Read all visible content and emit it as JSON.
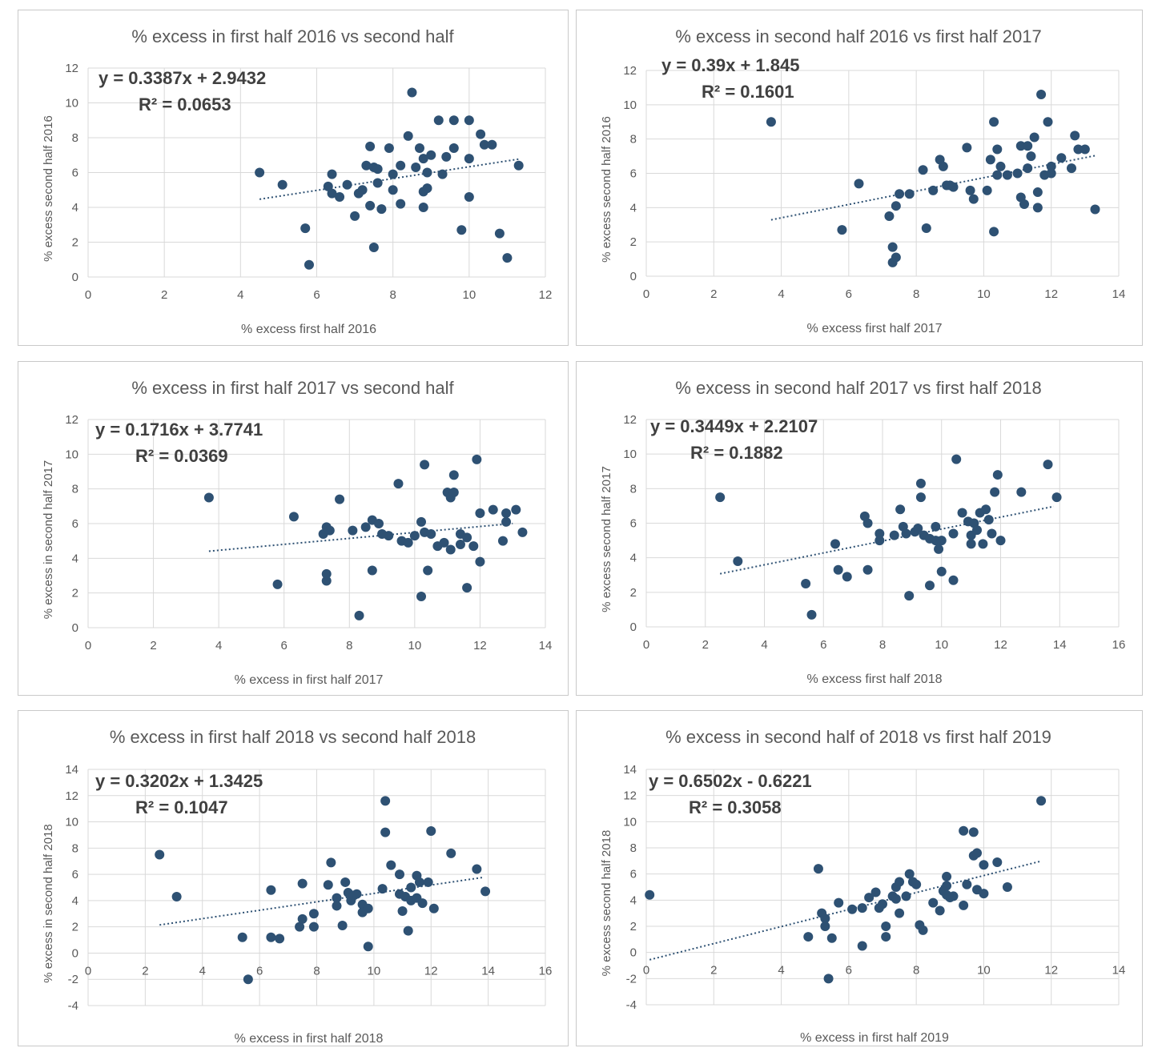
{
  "colors": {
    "marker": "#2e5173",
    "trend": "#2e5173",
    "grid": "#d9d9d9",
    "text": "#595959",
    "eq": "#404040"
  },
  "chart_data": [
    {
      "type": "scatter",
      "title": "% excess in first half 2016 vs second half",
      "xlabel": "% excess first half 2016",
      "ylabel": "% excess second half 2016",
      "xlim": [
        0,
        12
      ],
      "ylim": [
        0,
        12
      ],
      "xticks": [
        "0",
        "2",
        "4",
        "6",
        "8",
        "10",
        "12"
      ],
      "yticks": [
        "0",
        "2",
        "4",
        "6",
        "8",
        "10",
        "12"
      ],
      "equation": "y = 0.3387x + 2.9432",
      "r2": "R² = 0.0653",
      "trend": {
        "slope": 0.3387,
        "intercept": 2.9432,
        "x_start": 4.5,
        "x_end": 11.3
      },
      "grid": true,
      "legend": "none",
      "points": [
        [
          4.5,
          6
        ],
        [
          5.1,
          5.3
        ],
        [
          5.7,
          2.8
        ],
        [
          5.8,
          0.7
        ],
        [
          6.3,
          5.2
        ],
        [
          6.4,
          5.9
        ],
        [
          6.4,
          4.8
        ],
        [
          6.6,
          4.6
        ],
        [
          6.8,
          5.3
        ],
        [
          7.0,
          3.5
        ],
        [
          7.1,
          4.8
        ],
        [
          7.2,
          5
        ],
        [
          7.3,
          6.4
        ],
        [
          7.4,
          4.1
        ],
        [
          7.4,
          7.5
        ],
        [
          7.5,
          6.3
        ],
        [
          7.6,
          6.2
        ],
        [
          7.5,
          1.7
        ],
        [
          7.6,
          5.4
        ],
        [
          7.7,
          3.9
        ],
        [
          7.9,
          7.4
        ],
        [
          8.0,
          5
        ],
        [
          8.0,
          5.9
        ],
        [
          8.2,
          4.2
        ],
        [
          8.2,
          6.4
        ],
        [
          8.4,
          8.1
        ],
        [
          8.5,
          10.6
        ],
        [
          8.6,
          6.3
        ],
        [
          8.7,
          7.4
        ],
        [
          8.8,
          6.8
        ],
        [
          8.8,
          4
        ],
        [
          8.8,
          4.9
        ],
        [
          8.9,
          5.1
        ],
        [
          8.9,
          6
        ],
        [
          9.0,
          7
        ],
        [
          9.2,
          9
        ],
        [
          9.3,
          5.9
        ],
        [
          9.4,
          6.9
        ],
        [
          9.6,
          7.4
        ],
        [
          9.6,
          9
        ],
        [
          9.8,
          2.7
        ],
        [
          10.0,
          4.6
        ],
        [
          10.0,
          6.8
        ],
        [
          10.0,
          9
        ],
        [
          10.3,
          8.2
        ],
        [
          10.4,
          7.6
        ],
        [
          10.6,
          7.6
        ],
        [
          10.8,
          2.5
        ],
        [
          11.0,
          1.1
        ],
        [
          11.3,
          6.4
        ]
      ]
    },
    {
      "type": "scatter",
      "title": "% excess in second half 2016 vs first half 2017",
      "xlabel": "% excess first half 2017",
      "ylabel": "% excess second  half 2016",
      "xlim": [
        0,
        14
      ],
      "ylim": [
        0,
        12
      ],
      "xticks": [
        "0",
        "2",
        "4",
        "6",
        "8",
        "10",
        "12",
        "14"
      ],
      "yticks": [
        "0",
        "2",
        "4",
        "6",
        "8",
        "10",
        "12"
      ],
      "equation": "y = 0.39x + 1.845",
      "r2": "R² = 0.1601",
      "trend": {
        "slope": 0.39,
        "intercept": 1.845,
        "x_start": 3.7,
        "x_end": 13.3
      },
      "grid": true,
      "legend": "none",
      "points": [
        [
          3.7,
          9
        ],
        [
          5.8,
          2.7
        ],
        [
          6.3,
          5.4
        ],
        [
          7.2,
          3.5
        ],
        [
          7.3,
          1.7
        ],
        [
          7.3,
          0.8
        ],
        [
          7.4,
          1.1
        ],
        [
          7.4,
          4.1
        ],
        [
          7.5,
          4.8
        ],
        [
          7.8,
          4.8
        ],
        [
          8.2,
          6.2
        ],
        [
          8.3,
          2.8
        ],
        [
          8.5,
          5
        ],
        [
          8.7,
          6.8
        ],
        [
          8.8,
          6.4
        ],
        [
          8.9,
          5.3
        ],
        [
          9.0,
          5.3
        ],
        [
          9.1,
          5.2
        ],
        [
          9.5,
          7.5
        ],
        [
          9.6,
          5
        ],
        [
          9.7,
          4.5
        ],
        [
          10.1,
          5
        ],
        [
          10.2,
          6.8
        ],
        [
          10.3,
          9
        ],
        [
          10.3,
          2.6
        ],
        [
          10.4,
          5.9
        ],
        [
          10.4,
          7.4
        ],
        [
          10.5,
          6.4
        ],
        [
          10.7,
          5.9
        ],
        [
          11.0,
          6
        ],
        [
          11.1,
          7.6
        ],
        [
          11.1,
          4.6
        ],
        [
          11.2,
          4.2
        ],
        [
          11.3,
          7.6
        ],
        [
          11.3,
          6.3
        ],
        [
          11.4,
          7
        ],
        [
          11.5,
          8.1
        ],
        [
          11.6,
          4
        ],
        [
          11.6,
          4.9
        ],
        [
          11.7,
          10.6
        ],
        [
          11.8,
          5.9
        ],
        [
          11.9,
          9
        ],
        [
          12.0,
          6
        ],
        [
          12.0,
          6.4
        ],
        [
          12.3,
          6.9
        ],
        [
          12.6,
          6.3
        ],
        [
          12.7,
          8.2
        ],
        [
          12.8,
          7.4
        ],
        [
          13.0,
          7.4
        ],
        [
          13.3,
          3.9
        ]
      ]
    },
    {
      "type": "scatter",
      "title": "% excess in first half 2017 vs second half",
      "xlabel": "% excess in first half 2017",
      "ylabel": "% excess in second half 2017",
      "xlim": [
        0,
        14
      ],
      "ylim": [
        0,
        12
      ],
      "xticks": [
        "0",
        "2",
        "4",
        "6",
        "8",
        "10",
        "12",
        "14"
      ],
      "yticks": [
        "0",
        "2",
        "4",
        "6",
        "8",
        "10",
        "12"
      ],
      "equation": "y = 0.1716x + 3.7741",
      "r2": "R² = 0.0369",
      "trend": {
        "slope": 0.1716,
        "intercept": 3.7741,
        "x_start": 3.7,
        "x_end": 13.0
      },
      "grid": true,
      "legend": "none",
      "points": [
        [
          3.7,
          7.5
        ],
        [
          5.8,
          2.5
        ],
        [
          6.3,
          6.4
        ],
        [
          7.2,
          5.4
        ],
        [
          7.3,
          2.7
        ],
        [
          7.3,
          3.1
        ],
        [
          7.3,
          5.8
        ],
        [
          7.4,
          5.6
        ],
        [
          7.7,
          7.4
        ],
        [
          8.1,
          5.6
        ],
        [
          8.3,
          0.7
        ],
        [
          8.5,
          5.8
        ],
        [
          8.7,
          6.2
        ],
        [
          8.7,
          3.3
        ],
        [
          8.9,
          6
        ],
        [
          9.0,
          5.4
        ],
        [
          9.2,
          5.3
        ],
        [
          9.5,
          8.3
        ],
        [
          9.6,
          5
        ],
        [
          9.8,
          4.9
        ],
        [
          10.0,
          5.3
        ],
        [
          10.2,
          1.8
        ],
        [
          10.2,
          6.1
        ],
        [
          10.3,
          9.4
        ],
        [
          10.3,
          5.5
        ],
        [
          10.4,
          3.3
        ],
        [
          10.5,
          5.4
        ],
        [
          10.7,
          4.7
        ],
        [
          10.9,
          4.9
        ],
        [
          11.0,
          7.8
        ],
        [
          11.1,
          4.5
        ],
        [
          11.1,
          7.5
        ],
        [
          11.2,
          8.8
        ],
        [
          11.2,
          7.8
        ],
        [
          11.4,
          5.4
        ],
        [
          11.4,
          4.8
        ],
        [
          11.6,
          5.2
        ],
        [
          11.6,
          2.3
        ],
        [
          11.8,
          4.7
        ],
        [
          11.9,
          9.7
        ],
        [
          12.0,
          6.6
        ],
        [
          12.0,
          3.8
        ],
        [
          12.4,
          6.8
        ],
        [
          12.7,
          5
        ],
        [
          12.8,
          6.6
        ],
        [
          12.8,
          6.1
        ],
        [
          13.1,
          6.8
        ],
        [
          13.3,
          5.5
        ]
      ]
    },
    {
      "type": "scatter",
      "title": "% excess in second half 2017 vs first half 2018",
      "xlabel": "% excess first half 2018",
      "ylabel": "% excess second half 2017",
      "xlim": [
        0,
        16
      ],
      "ylim": [
        0,
        12
      ],
      "xticks": [
        "0",
        "2",
        "4",
        "6",
        "8",
        "10",
        "12",
        "14",
        "16"
      ],
      "yticks": [
        "0",
        "2",
        "4",
        "6",
        "8",
        "10",
        "12"
      ],
      "equation": "y = 0.3449x + 2.2107",
      "r2": "R² = 0.1882",
      "trend": {
        "slope": 0.3449,
        "intercept": 2.2107,
        "x_start": 2.5,
        "x_end": 13.8
      },
      "grid": true,
      "legend": "none",
      "points": [
        [
          2.5,
          7.5
        ],
        [
          3.1,
          3.8
        ],
        [
          5.4,
          2.5
        ],
        [
          5.6,
          0.7
        ],
        [
          6.4,
          4.8
        ],
        [
          6.5,
          3.3
        ],
        [
          6.8,
          2.9
        ],
        [
          7.4,
          6.4
        ],
        [
          7.5,
          6
        ],
        [
          7.5,
          3.3
        ],
        [
          7.9,
          5.4
        ],
        [
          7.9,
          5
        ],
        [
          8.4,
          5.3
        ],
        [
          8.6,
          6.8
        ],
        [
          8.7,
          5.8
        ],
        [
          8.8,
          5.4
        ],
        [
          8.9,
          1.8
        ],
        [
          9.1,
          5.5
        ],
        [
          9.2,
          5.7
        ],
        [
          9.3,
          8.3
        ],
        [
          9.3,
          7.5
        ],
        [
          9.4,
          5.3
        ],
        [
          9.6,
          2.4
        ],
        [
          9.6,
          5.1
        ],
        [
          9.8,
          5.8
        ],
        [
          9.8,
          5
        ],
        [
          9.9,
          4.5
        ],
        [
          10.0,
          3.2
        ],
        [
          10.0,
          5
        ],
        [
          10.4,
          5.4
        ],
        [
          10.4,
          2.7
        ],
        [
          10.5,
          9.7
        ],
        [
          10.7,
          6.6
        ],
        [
          10.9,
          6.1
        ],
        [
          11.0,
          4.8
        ],
        [
          11.0,
          5.3
        ],
        [
          11.1,
          6
        ],
        [
          11.2,
          5.6
        ],
        [
          11.3,
          6.6
        ],
        [
          11.4,
          4.8
        ],
        [
          11.5,
          6.8
        ],
        [
          11.6,
          6.2
        ],
        [
          11.7,
          5.4
        ],
        [
          11.8,
          7.8
        ],
        [
          11.9,
          8.8
        ],
        [
          12.0,
          5
        ],
        [
          12.7,
          7.8
        ],
        [
          13.6,
          9.4
        ],
        [
          13.9,
          7.5
        ]
      ]
    },
    {
      "type": "scatter",
      "title": "% excess in first half 2018 vs second half 2018",
      "xlabel": "% excess in first half 2018",
      "ylabel": "% excess in second half 2018",
      "xlim": [
        0,
        16
      ],
      "ylim": [
        -4,
        14
      ],
      "xticks": [
        "0",
        "2",
        "4",
        "6",
        "8",
        "10",
        "12",
        "14",
        "16"
      ],
      "yticks": [
        "-4",
        "-2",
        "0",
        "2",
        "4",
        "6",
        "8",
        "10",
        "12",
        "14"
      ],
      "equation": "y = 0.3202x + 1.3425",
      "r2": "R² = 0.1047",
      "trend": {
        "slope": 0.3202,
        "intercept": 1.3425,
        "x_start": 2.5,
        "x_end": 13.8
      },
      "grid": true,
      "legend": "none",
      "points": [
        [
          2.5,
          7.5
        ],
        [
          3.1,
          4.3
        ],
        [
          5.4,
          1.2
        ],
        [
          5.6,
          -2
        ],
        [
          6.4,
          4.8
        ],
        [
          6.4,
          1.2
        ],
        [
          6.7,
          1.1
        ],
        [
          7.4,
          2.0
        ],
        [
          7.5,
          2.6
        ],
        [
          7.5,
          5.3
        ],
        [
          7.9,
          3.0
        ],
        [
          7.9,
          2.0
        ],
        [
          8.4,
          5.2
        ],
        [
          8.5,
          6.9
        ],
        [
          8.7,
          4.2
        ],
        [
          8.7,
          3.6
        ],
        [
          8.9,
          2.1
        ],
        [
          9.0,
          5.4
        ],
        [
          9.1,
          4.6
        ],
        [
          9.2,
          4.0
        ],
        [
          9.3,
          4.4
        ],
        [
          9.4,
          4.5
        ],
        [
          9.6,
          3.7
        ],
        [
          9.6,
          3.1
        ],
        [
          9.8,
          3.4
        ],
        [
          9.8,
          0.5
        ],
        [
          10.3,
          4.9
        ],
        [
          10.4,
          9.2
        ],
        [
          10.4,
          11.6
        ],
        [
          10.6,
          6.7
        ],
        [
          10.9,
          6.0
        ],
        [
          10.9,
          4.5
        ],
        [
          11.0,
          3.2
        ],
        [
          11.1,
          4.3
        ],
        [
          11.2,
          1.7
        ],
        [
          11.3,
          4.0
        ],
        [
          11.3,
          5.0
        ],
        [
          11.5,
          4.2
        ],
        [
          11.5,
          5.9
        ],
        [
          11.6,
          5.4
        ],
        [
          11.7,
          3.8
        ],
        [
          11.9,
          5.4
        ],
        [
          12.0,
          9.3
        ],
        [
          12.1,
          3.4
        ],
        [
          12.7,
          7.6
        ],
        [
          13.6,
          6.4
        ],
        [
          13.9,
          4.7
        ]
      ]
    },
    {
      "type": "scatter",
      "title": "% excess in second half of 2018 vs first half 2019",
      "xlabel": "% excess in first half 2019",
      "ylabel": "% excess second half 2018",
      "xlim": [
        0,
        14
      ],
      "ylim": [
        -4,
        14
      ],
      "xticks": [
        "0",
        "2",
        "4",
        "6",
        "8",
        "10",
        "12",
        "14"
      ],
      "yticks": [
        "-4",
        "-2",
        "0",
        "2",
        "4",
        "6",
        "8",
        "10",
        "12",
        "14"
      ],
      "equation": "y = 0.6502x - 0.6221",
      "r2": "R² = 0.3058",
      "trend": {
        "slope": 0.6502,
        "intercept": -0.6221,
        "x_start": 0.1,
        "x_end": 11.7
      },
      "grid": true,
      "legend": "none",
      "points": [
        [
          0.1,
          4.4
        ],
        [
          4.8,
          1.2
        ],
        [
          5.1,
          6.4
        ],
        [
          5.2,
          3.0
        ],
        [
          5.3,
          2.0
        ],
        [
          5.3,
          2.6
        ],
        [
          5.4,
          -2
        ],
        [
          5.5,
          1.1
        ],
        [
          5.7,
          3.8
        ],
        [
          6.1,
          3.3
        ],
        [
          6.4,
          3.4
        ],
        [
          6.4,
          0.5
        ],
        [
          6.6,
          4.2
        ],
        [
          6.8,
          4.6
        ],
        [
          6.9,
          3.4
        ],
        [
          7.0,
          3.7
        ],
        [
          7.1,
          2.0
        ],
        [
          7.1,
          1.2
        ],
        [
          7.3,
          4.3
        ],
        [
          7.4,
          4.1
        ],
        [
          7.4,
          5.0
        ],
        [
          7.5,
          5.4
        ],
        [
          7.5,
          3.0
        ],
        [
          7.7,
          4.3
        ],
        [
          7.8,
          6.0
        ],
        [
          7.9,
          5.4
        ],
        [
          8.0,
          5.2
        ],
        [
          8.1,
          2.1
        ],
        [
          8.2,
          1.7
        ],
        [
          8.5,
          3.8
        ],
        [
          8.7,
          3.2
        ],
        [
          8.8,
          4.7
        ],
        [
          8.9,
          5.8
        ],
        [
          8.9,
          4.4
        ],
        [
          8.9,
          5.1
        ],
        [
          9.0,
          4.2
        ],
        [
          9.1,
          4.3
        ],
        [
          9.4,
          3.6
        ],
        [
          9.4,
          9.3
        ],
        [
          9.5,
          5.2
        ],
        [
          9.7,
          7.4
        ],
        [
          9.7,
          9.2
        ],
        [
          9.8,
          4.8
        ],
        [
          9.8,
          7.6
        ],
        [
          10.0,
          4.5
        ],
        [
          10.0,
          6.7
        ],
        [
          10.4,
          6.9
        ],
        [
          10.7,
          5.0
        ],
        [
          11.7,
          11.6
        ]
      ]
    }
  ]
}
